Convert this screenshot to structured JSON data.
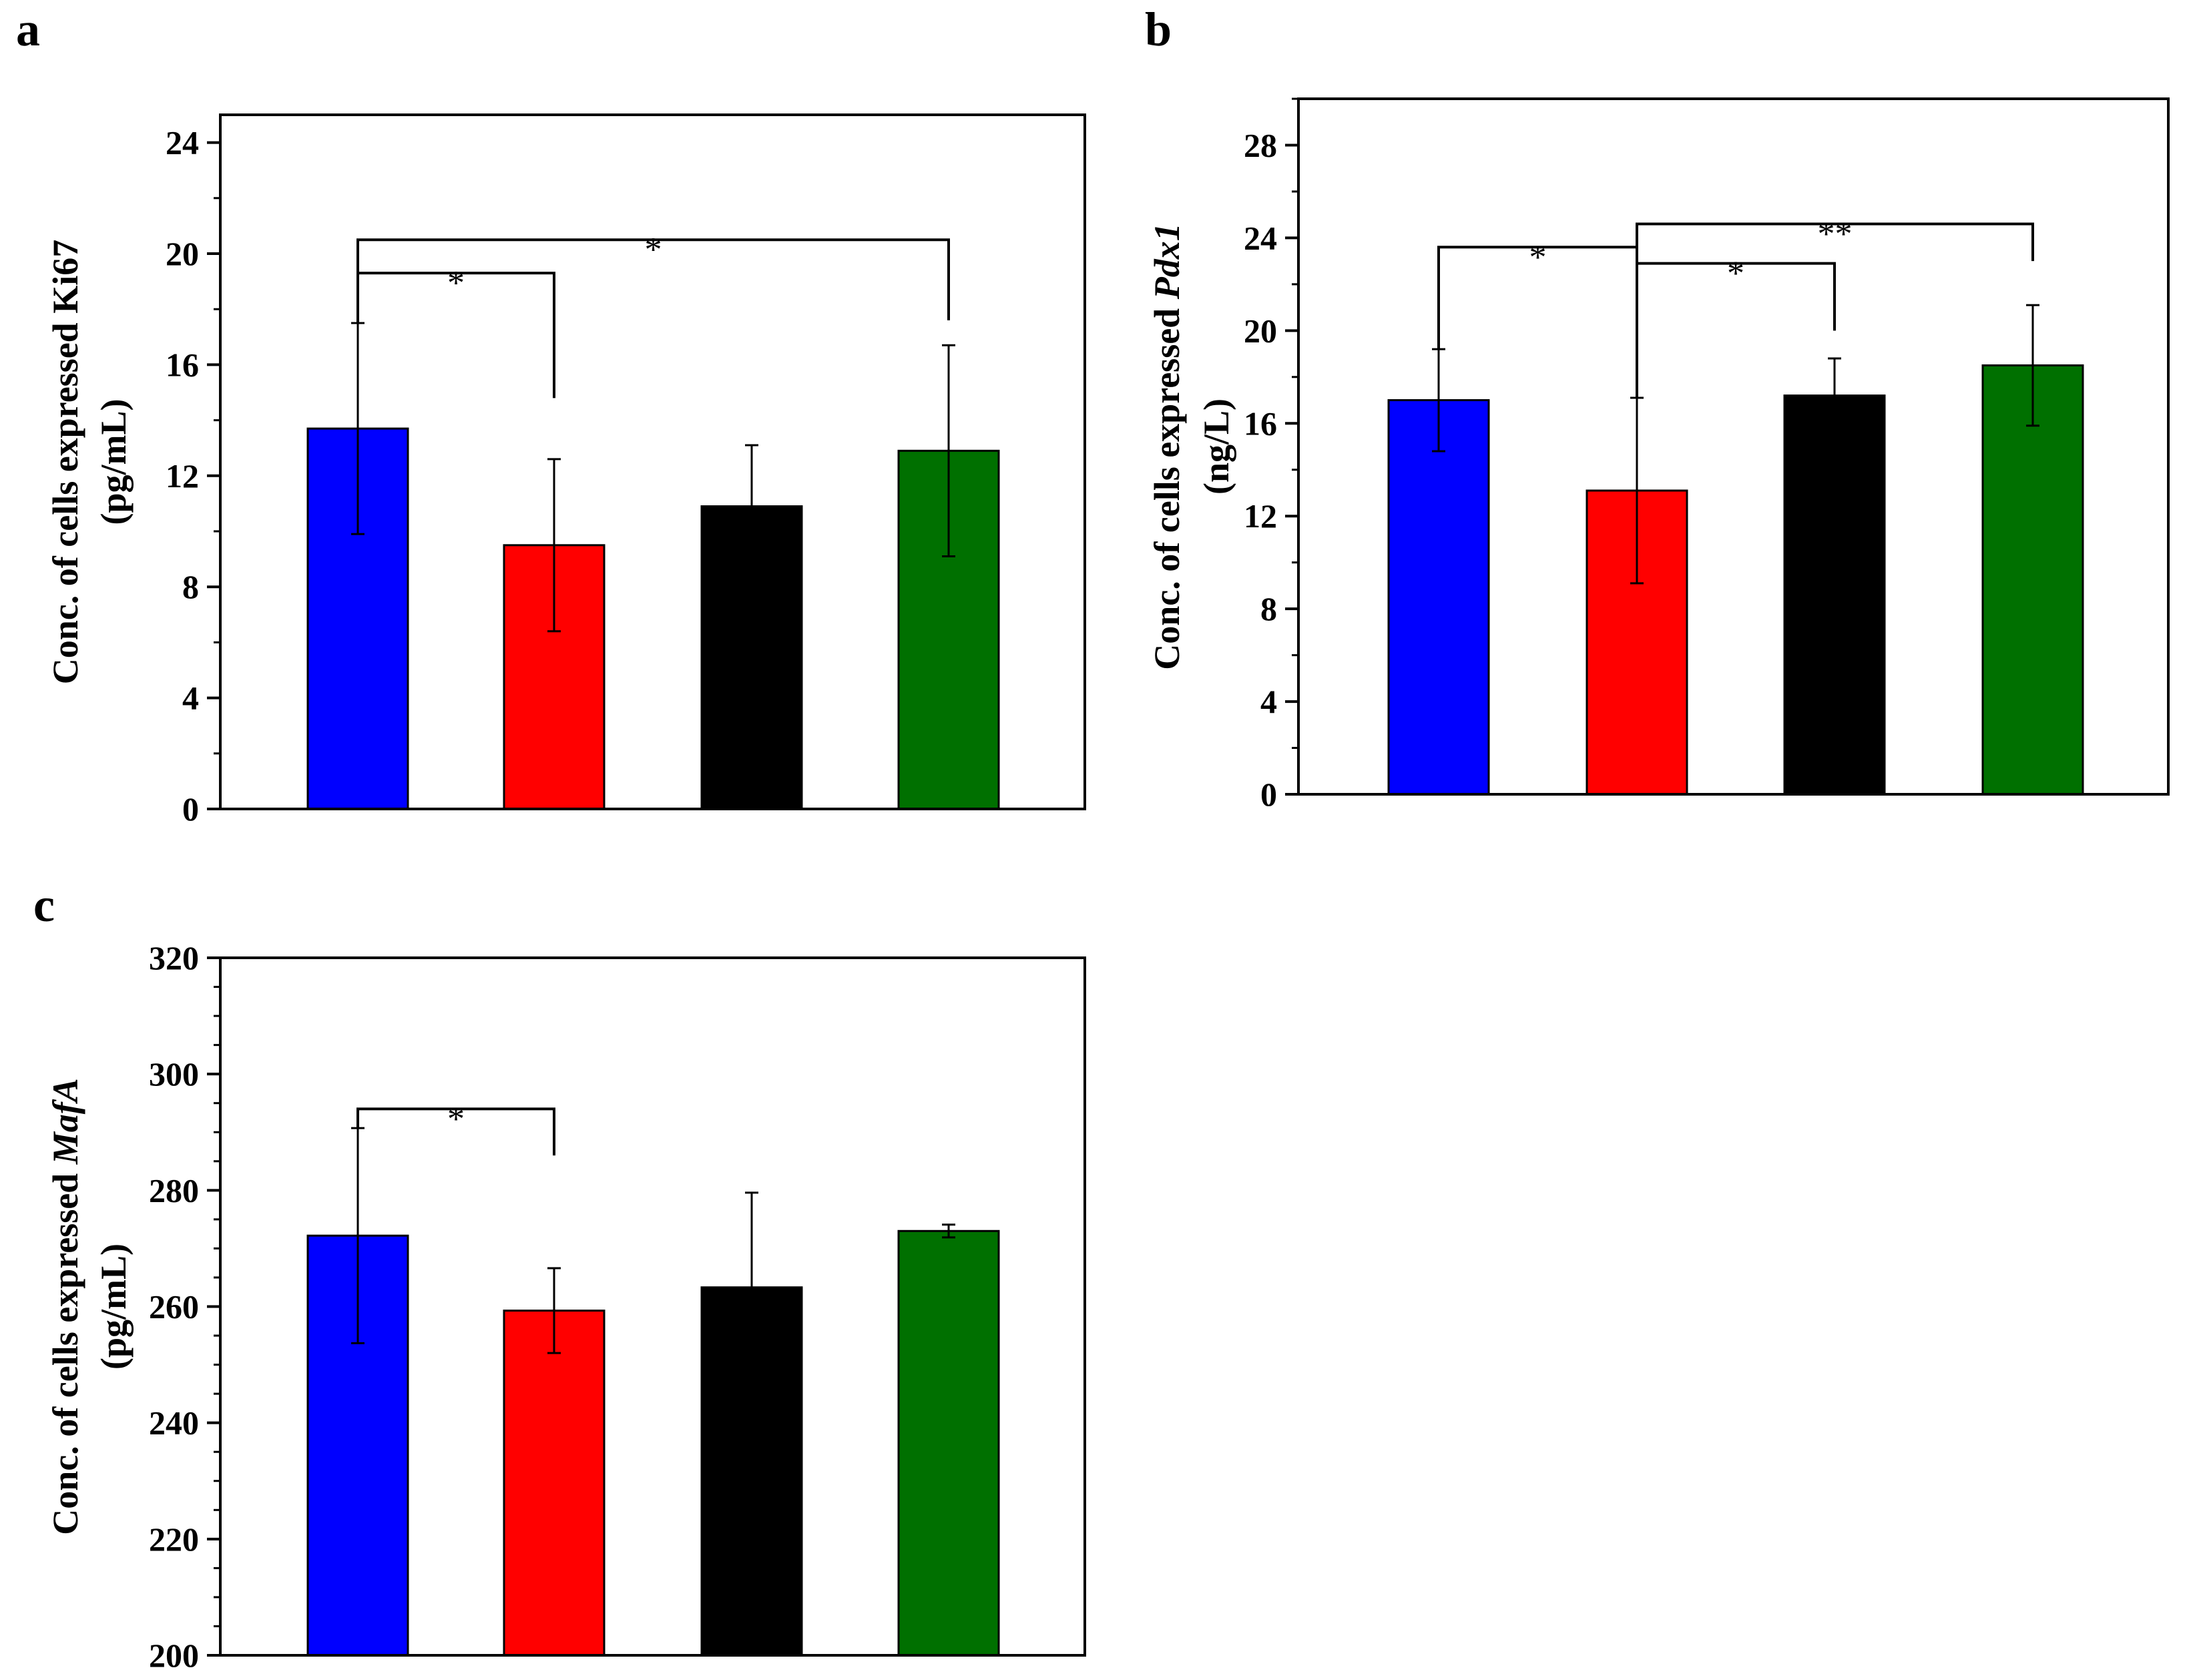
{
  "chart_data": [
    {
      "type": "bar",
      "panel": "a",
      "ylabel_lines": [
        [
          {
            "text": "Conc. of cells expressed Ki67",
            "italic": false
          }
        ],
        [
          {
            "text": "(pg/mL)",
            "italic": false
          }
        ]
      ],
      "ylim": [
        0,
        25
      ],
      "yticks": [
        0,
        4,
        8,
        12,
        16,
        20,
        24
      ],
      "minor_step": 2,
      "values": [
        13.7,
        9.5,
        10.9,
        12.9
      ],
      "errors": [
        3.8,
        3.1,
        2.2,
        3.8
      ],
      "colors": [
        "#0000ff",
        "#ff0000",
        "#000000",
        "#007000"
      ],
      "significance": [
        {
          "from": 0,
          "to": 1,
          "label": "*",
          "y": 19.3,
          "to_end": 14.8
        },
        {
          "from": 0,
          "to": 3,
          "label": "*",
          "y": 20.5,
          "to_end": 17.6
        }
      ]
    },
    {
      "type": "bar",
      "panel": "b",
      "ylabel_lines": [
        [
          {
            "text": "Conc. of cells expressed ",
            "italic": false
          },
          {
            "text": "Pdx1",
            "italic": true
          }
        ],
        [
          {
            "text": "(ng/L)",
            "italic": false
          }
        ]
      ],
      "ylim": [
        0,
        30
      ],
      "yticks": [
        0,
        4,
        8,
        12,
        16,
        20,
        24,
        28
      ],
      "minor_step": 2,
      "values": [
        17.0,
        13.1,
        17.2,
        18.5
      ],
      "errors": [
        2.2,
        4.0,
        1.6,
        2.6
      ],
      "colors": [
        "#0000ff",
        "#ff0000",
        "#000000",
        "#007000"
      ],
      "significance": [
        {
          "from": 0,
          "to": 1,
          "label": "*",
          "y": 23.6,
          "to_end": 19.0
        },
        {
          "from": 1,
          "to": 2,
          "label": "*",
          "y": 22.9,
          "to_end": 20.0
        },
        {
          "from": 1,
          "to": 3,
          "label": "**",
          "y": 24.6,
          "to_end": 23.0
        }
      ]
    },
    {
      "type": "bar",
      "panel": "c",
      "ylabel_lines": [
        [
          {
            "text": "Conc. of  cells expressed ",
            "italic": false
          },
          {
            "text": "MafA",
            "italic": true
          }
        ],
        [
          {
            "text": "(pg/mL)",
            "italic": false
          }
        ]
      ],
      "ylim": [
        200,
        320
      ],
      "yticks": [
        200,
        220,
        240,
        260,
        280,
        300,
        320
      ],
      "minor_step": 5,
      "values": [
        272.2,
        259.3,
        263.3,
        273.0
      ],
      "errors": [
        18.5,
        7.3,
        16.3,
        1.1
      ],
      "colors": [
        "#0000ff",
        "#ff0000",
        "#000000",
        "#007000"
      ],
      "significance": [
        {
          "from": 0,
          "to": 1,
          "label": "*",
          "y": 294.0,
          "to_end": 286.0
        }
      ]
    }
  ]
}
